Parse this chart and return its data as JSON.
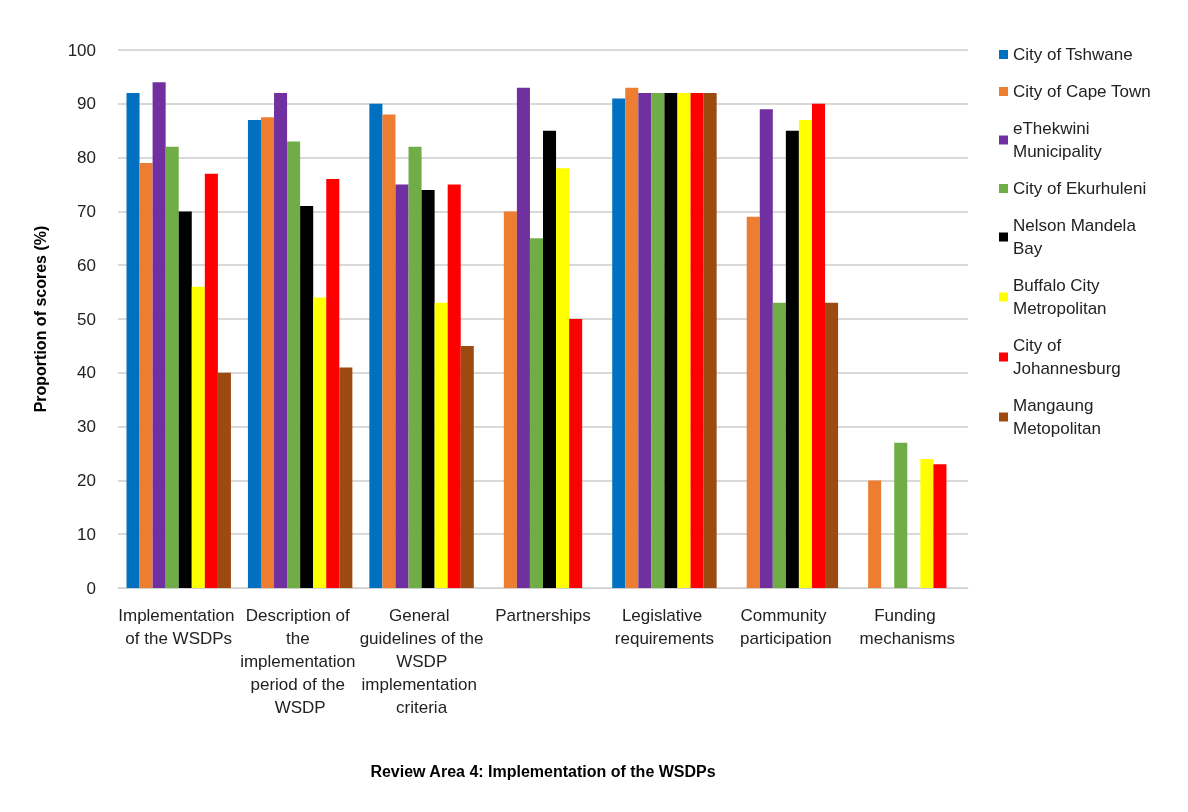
{
  "chart_data": {
    "type": "bar",
    "xlabel": "Review Area 4: Implementation of the WSDPs",
    "ylabel": "Proportion of scores (%)",
    "categories": [
      "Implementation of the WSDPs",
      "Description of the implementation period of the WSDP",
      "General guidelines of the WSDP implementation criteria",
      "Partnerships",
      "Legislative requirements",
      "Community participation",
      "Funding mechanisms"
    ],
    "series": [
      {
        "name": "City of Tshwane",
        "color": "#0070c0",
        "values": [
          92,
          87,
          90,
          null,
          91,
          null,
          null
        ]
      },
      {
        "name": "City of Cape Town",
        "color": "#ed7d31",
        "values": [
          79,
          87.5,
          88,
          70,
          93,
          69,
          20
        ]
      },
      {
        "name": "eThekwini Municipality",
        "color": "#7030a0",
        "values": [
          94,
          92,
          75,
          93,
          92,
          89,
          null
        ]
      },
      {
        "name": "City of Ekurhuleni",
        "color": "#70ad47",
        "values": [
          82,
          83,
          82,
          65,
          92,
          53,
          27
        ]
      },
      {
        "name": "Nelson Mandela Bay",
        "color": "#000000",
        "values": [
          70,
          71,
          74,
          85,
          92,
          85,
          null
        ]
      },
      {
        "name": "Buffalo City Metropolitan",
        "color": "#ffff00",
        "values": [
          56,
          54,
          53,
          78,
          92,
          87,
          24
        ]
      },
      {
        "name": "City of Johannesburg",
        "color": "#ff0000",
        "values": [
          77,
          76,
          75,
          50,
          92,
          90,
          23
        ]
      },
      {
        "name": "Mangaung Metopolitan",
        "color": "#9c4a0f",
        "values": [
          40,
          41,
          45,
          null,
          92,
          53,
          null
        ]
      }
    ],
    "ylim": [
      0,
      100
    ],
    "yticks": [
      0,
      10,
      20,
      30,
      40,
      50,
      60,
      70,
      80,
      90,
      100
    ],
    "grid": "y",
    "legend": "right"
  }
}
